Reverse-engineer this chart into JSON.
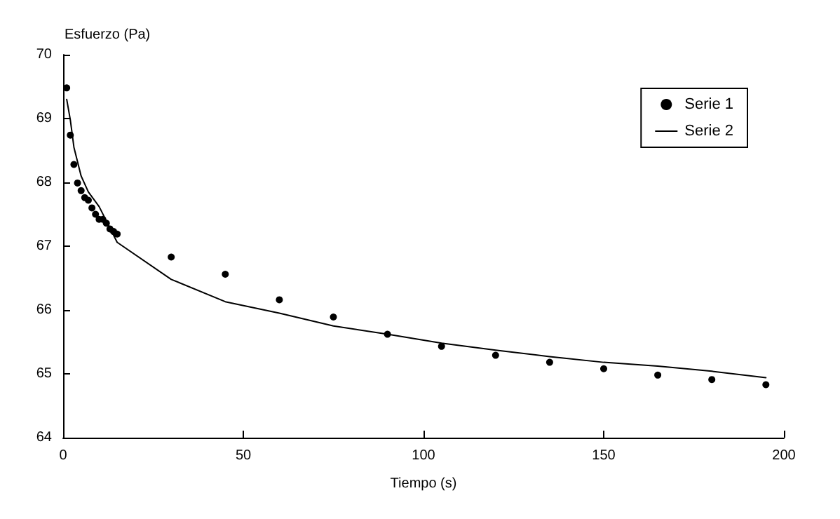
{
  "chart_data": {
    "type": "scatter",
    "xlabel": "Tiempo (s)",
    "ylabel": "Esfuerzo (Pa)",
    "xlim": [
      0,
      200
    ],
    "xticks": [
      0,
      50,
      100,
      150,
      200
    ],
    "ylim": [
      64,
      70
    ],
    "yticks": [
      64,
      65,
      66,
      67,
      68,
      69,
      70
    ],
    "grid": false,
    "legend": "top right",
    "series": [
      {
        "name": "Serie 1",
        "marker": "circle",
        "color": "#000000",
        "x": [
          1,
          2,
          3,
          4,
          5,
          6,
          7,
          8,
          9,
          10,
          11,
          12,
          13,
          14,
          15,
          30,
          45,
          60,
          75,
          90,
          105,
          120,
          135,
          150,
          165,
          180,
          195
        ],
        "values": [
          69.48,
          68.74,
          68.28,
          67.99,
          67.87,
          67.76,
          67.72,
          67.6,
          67.5,
          67.42,
          67.42,
          67.36,
          67.27,
          67.23,
          67.19,
          66.83,
          66.56,
          66.16,
          65.89,
          65.62,
          65.43,
          65.29,
          65.18,
          65.08,
          64.98,
          64.91,
          64.83
        ]
      },
      {
        "name": "Serie 2",
        "type": "line",
        "marker": "none",
        "line_style": "solid",
        "color": "#000000",
        "x": [
          1,
          2,
          3,
          5,
          7,
          10,
          15,
          30,
          45,
          60,
          75,
          90,
          105,
          120,
          135,
          150,
          165,
          180,
          195
        ],
        "values": [
          69.3,
          68.98,
          68.55,
          68.1,
          67.85,
          67.62,
          67.06,
          66.48,
          66.13,
          65.95,
          65.75,
          65.62,
          65.48,
          65.37,
          65.27,
          65.18,
          65.12,
          65.04,
          64.94
        ]
      }
    ]
  }
}
